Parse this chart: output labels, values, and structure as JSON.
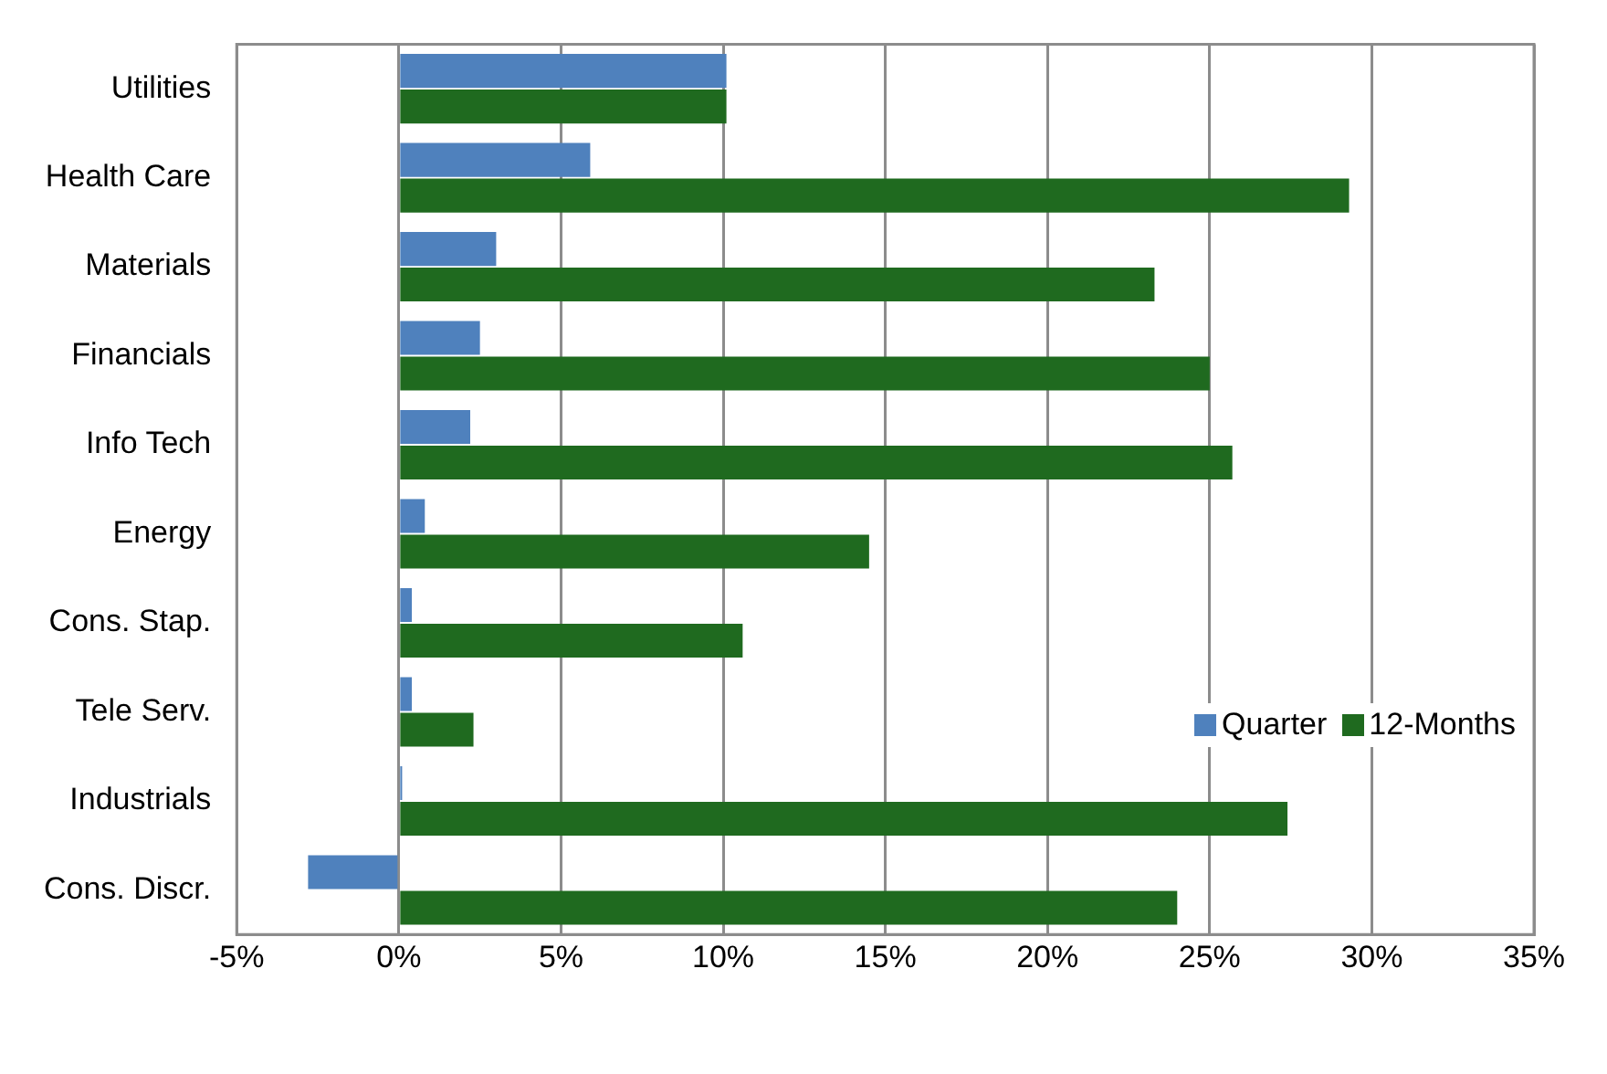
{
  "chart_data": {
    "type": "bar",
    "orientation": "horizontal",
    "categories": [
      "Utilities",
      "Health Care",
      "Materials",
      "Financials",
      "Info Tech",
      "Energy",
      "Cons. Stap.",
      "Tele Serv.",
      "Industrials",
      "Cons. Discr."
    ],
    "series": [
      {
        "name": "Quarter",
        "color": "#4f81bd",
        "values": [
          10.1,
          5.9,
          3.0,
          2.5,
          2.2,
          0.8,
          0.4,
          0.4,
          0.1,
          -2.8
        ]
      },
      {
        "name": "12-Months",
        "color": "#1f6a1f",
        "values": [
          10.1,
          29.3,
          23.3,
          25.0,
          25.7,
          14.5,
          10.6,
          2.3,
          27.4,
          24.0
        ]
      }
    ],
    "xlim": [
      -5,
      35
    ],
    "xticks": [
      {
        "value": -5,
        "label": "-5%"
      },
      {
        "value": 0,
        "label": "0%"
      },
      {
        "value": 5,
        "label": "5%"
      },
      {
        "value": 10,
        "label": "10%"
      },
      {
        "value": 15,
        "label": "15%"
      },
      {
        "value": 20,
        "label": "20%"
      },
      {
        "value": 25,
        "label": "25%"
      },
      {
        "value": 30,
        "label": "30%"
      },
      {
        "value": 35,
        "label": "35%"
      }
    ],
    "grid": "x",
    "legend": "right"
  }
}
